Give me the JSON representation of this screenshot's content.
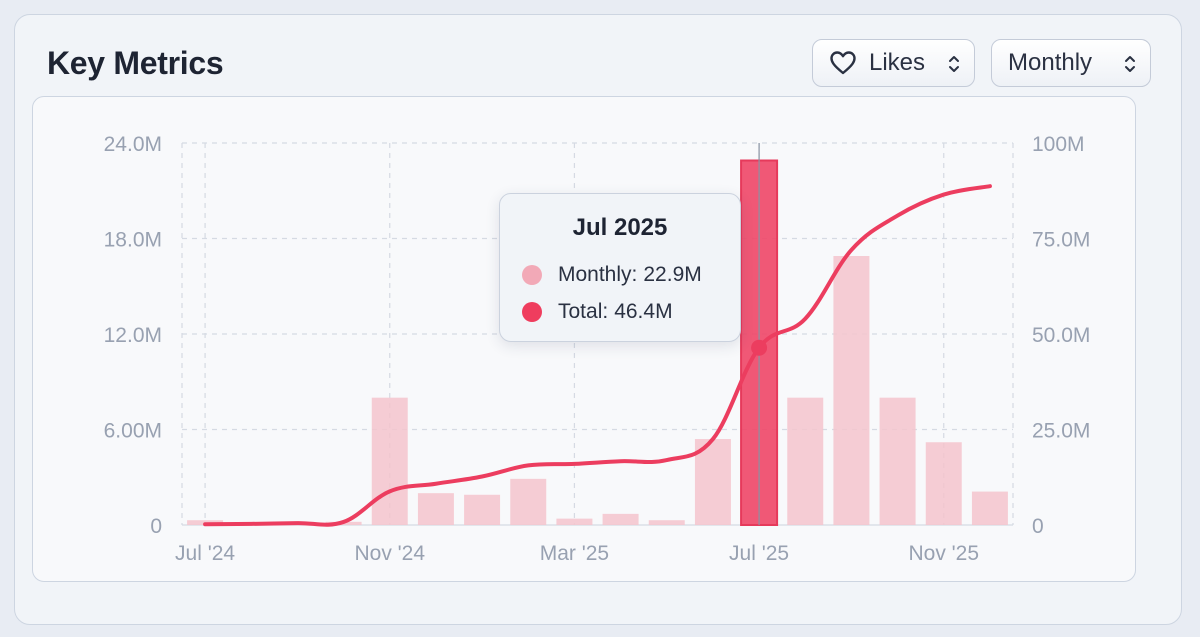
{
  "card": {
    "title": "Key Metrics"
  },
  "controls": {
    "metric_select": {
      "value": "Likes",
      "icon": "heart-icon"
    },
    "period_select": {
      "value": "Monthly"
    }
  },
  "colors": {
    "bar": "#f5c4cd",
    "bar_active": "#ef4a6a",
    "line": "#ec3d5f",
    "grid": "#d5dae3"
  },
  "chart_data": {
    "type": "bar+line",
    "categories": [
      "Jul '24",
      "Aug '24",
      "Sep '24",
      "Oct '24",
      "Nov '24",
      "Dec '24",
      "Jan '25",
      "Feb '25",
      "Mar '25",
      "Apr '25",
      "May '25",
      "Jun '25",
      "Jul '25",
      "Aug '25",
      "Sep '25",
      "Oct '25",
      "Nov '25",
      "Dec '25"
    ],
    "x_tick_labels": [
      "Jul '24",
      "Nov '24",
      "Mar '25",
      "Jul '25",
      "Nov '25"
    ],
    "x_tick_indices": [
      0,
      4,
      8,
      12,
      16
    ],
    "series": [
      {
        "name": "Monthly",
        "type": "bar",
        "axis": "left",
        "values": [
          0.3,
          0.05,
          0.1,
          0.2,
          8.0,
          2.0,
          1.9,
          2.9,
          0.4,
          0.7,
          0.3,
          5.4,
          22.9,
          8.0,
          16.9,
          8.0,
          5.2,
          2.1
        ]
      },
      {
        "name": "Total",
        "type": "line",
        "axis": "right",
        "values": [
          0.2,
          0.3,
          0.5,
          0.8,
          8.8,
          10.8,
          12.7,
          15.6,
          16.0,
          16.7,
          17.0,
          22.5,
          46.4,
          54.0,
          72.0,
          81.0,
          86.5,
          88.7
        ]
      }
    ],
    "y_left": {
      "ticks": [
        0,
        6,
        12,
        18,
        24
      ],
      "tick_labels": [
        "0",
        "6.00M",
        "12.0M",
        "18.0M",
        "24.0M"
      ],
      "range": [
        0,
        24
      ]
    },
    "y_right": {
      "ticks": [
        0,
        25,
        50,
        75,
        100
      ],
      "tick_labels": [
        "0",
        "25.0M",
        "50.0M",
        "75.0M",
        "100M"
      ],
      "range": [
        0,
        100
      ]
    },
    "grid": true,
    "active_index": 12
  },
  "tooltip": {
    "title": "Jul 2025",
    "rows": [
      {
        "label": "Monthly:",
        "value": "22.9M"
      },
      {
        "label": "Total:",
        "value": "46.4M"
      }
    ]
  }
}
